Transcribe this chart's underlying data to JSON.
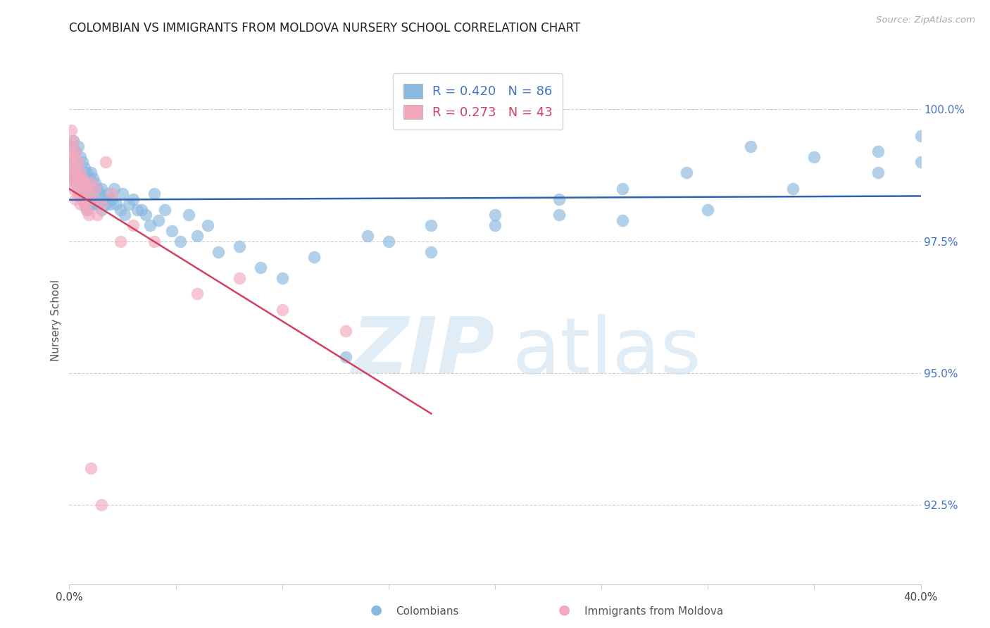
{
  "title": "COLOMBIAN VS IMMIGRANTS FROM MOLDOVA NURSERY SCHOOL CORRELATION CHART",
  "source": "Source: ZipAtlas.com",
  "ylabel": "Nursery School",
  "right_ytick_values": [
    100.0,
    97.5,
    95.0,
    92.5
  ],
  "right_ytick_labels": [
    "100.0%",
    "97.5%",
    "95.0%",
    "92.5%"
  ],
  "xlim": [
    0,
    0.4
  ],
  "ylim": [
    91.0,
    101.0
  ],
  "blue_R": 0.42,
  "blue_N": 86,
  "pink_R": 0.273,
  "pink_N": 43,
  "blue_color": "#89b8e0",
  "pink_color": "#f4a8bc",
  "blue_line_color": "#3060b0",
  "pink_line_color": "#d44060",
  "legend_blue_label": "Colombians",
  "legend_pink_label": "Immigrants from Moldova",
  "blue_x": [
    0.001,
    0.001,
    0.002,
    0.002,
    0.002,
    0.003,
    0.003,
    0.003,
    0.004,
    0.004,
    0.004,
    0.005,
    0.005,
    0.005,
    0.006,
    0.006,
    0.006,
    0.007,
    0.007,
    0.007,
    0.008,
    0.008,
    0.008,
    0.009,
    0.009,
    0.01,
    0.01,
    0.01,
    0.011,
    0.011,
    0.012,
    0.012,
    0.013,
    0.013,
    0.014,
    0.015,
    0.015,
    0.016,
    0.017,
    0.018,
    0.019,
    0.02,
    0.021,
    0.022,
    0.024,
    0.025,
    0.026,
    0.028,
    0.03,
    0.032,
    0.034,
    0.036,
    0.038,
    0.04,
    0.042,
    0.045,
    0.048,
    0.052,
    0.056,
    0.06,
    0.065,
    0.07,
    0.08,
    0.09,
    0.1,
    0.115,
    0.13,
    0.15,
    0.17,
    0.2,
    0.23,
    0.26,
    0.3,
    0.34,
    0.38,
    0.4,
    0.4,
    0.38,
    0.35,
    0.32,
    0.29,
    0.26,
    0.23,
    0.2,
    0.17,
    0.14
  ],
  "blue_y": [
    99.3,
    98.8,
    99.4,
    99.0,
    98.7,
    99.2,
    98.9,
    98.6,
    99.3,
    98.8,
    98.5,
    99.1,
    98.7,
    98.4,
    99.0,
    98.6,
    98.3,
    98.9,
    98.5,
    98.2,
    98.8,
    98.4,
    98.1,
    98.7,
    98.4,
    98.8,
    98.5,
    98.2,
    98.7,
    98.3,
    98.6,
    98.2,
    98.5,
    98.2,
    98.4,
    98.5,
    98.1,
    98.3,
    98.2,
    98.4,
    98.2,
    98.3,
    98.5,
    98.2,
    98.1,
    98.4,
    98.0,
    98.2,
    98.3,
    98.1,
    98.1,
    98.0,
    97.8,
    98.4,
    97.9,
    98.1,
    97.7,
    97.5,
    98.0,
    97.6,
    97.8,
    97.3,
    97.4,
    97.0,
    96.8,
    97.2,
    95.3,
    97.5,
    97.3,
    97.8,
    98.0,
    97.9,
    98.1,
    98.5,
    98.8,
    99.0,
    99.5,
    99.2,
    99.1,
    99.3,
    98.8,
    98.5,
    98.3,
    98.0,
    97.8,
    97.6
  ],
  "pink_x": [
    0.001,
    0.001,
    0.001,
    0.001,
    0.001,
    0.002,
    0.002,
    0.002,
    0.002,
    0.003,
    0.003,
    0.003,
    0.003,
    0.004,
    0.004,
    0.004,
    0.005,
    0.005,
    0.005,
    0.006,
    0.006,
    0.007,
    0.007,
    0.008,
    0.008,
    0.009,
    0.009,
    0.01,
    0.011,
    0.012,
    0.013,
    0.015,
    0.017,
    0.02,
    0.024,
    0.03,
    0.04,
    0.06,
    0.08,
    0.1,
    0.13,
    0.01,
    0.015
  ],
  "pink_y": [
    99.6,
    99.3,
    99.1,
    98.9,
    98.7,
    99.4,
    99.1,
    98.8,
    98.5,
    99.2,
    98.9,
    98.6,
    98.3,
    99.0,
    98.7,
    98.4,
    98.8,
    98.5,
    98.2,
    98.7,
    98.3,
    98.6,
    98.2,
    98.5,
    98.1,
    98.4,
    98.0,
    98.6,
    98.3,
    98.5,
    98.0,
    98.2,
    99.0,
    98.4,
    97.5,
    97.8,
    97.5,
    96.5,
    96.8,
    96.2,
    95.8,
    93.2,
    92.5
  ]
}
